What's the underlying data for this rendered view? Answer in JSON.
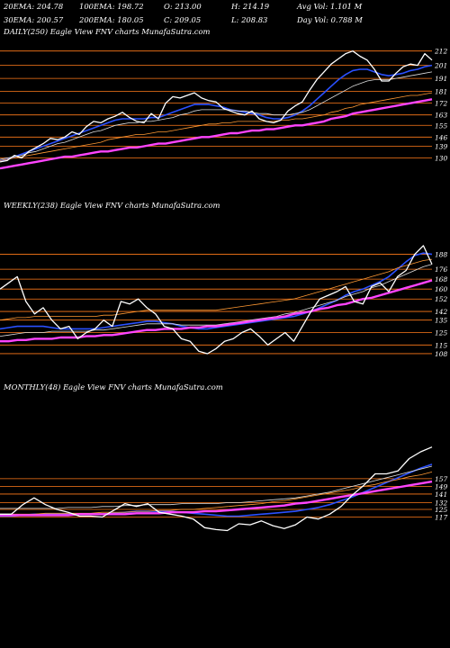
{
  "stats": {
    "row1": [
      {
        "label": "20EMA:",
        "value": "204.78"
      },
      {
        "label": "100EMA:",
        "value": "198.72"
      },
      {
        "label": "O:",
        "value": "213.00"
      },
      {
        "label": "H:",
        "value": "214.19"
      },
      {
        "label": "Avg Vol:",
        "value": "1.101 M"
      }
    ],
    "row2": [
      {
        "label": "30EMA:",
        "value": "200.57"
      },
      {
        "label": "200EMA:",
        "value": "180.05"
      },
      {
        "label": "C:",
        "value": "209.05"
      },
      {
        "label": "L:",
        "value": "208.83"
      },
      {
        "label": "Day Vol:",
        "value": "0.788 M"
      }
    ]
  },
  "colors": {
    "background": "#000000",
    "price": "#ffffff",
    "ema_blue": "#2a50ff",
    "ema_magenta": "#ff44ff",
    "ema_white": "#dddddd",
    "ema_orange": "#ff9933",
    "level_line": "#ff7a1a"
  },
  "chart_data": [
    {
      "type": "line",
      "title": "DAILY(250) Eagle  View  FNV charts MunafaSutra.com",
      "price_levels": [
        212,
        201,
        191,
        181,
        172,
        163,
        155,
        146,
        139,
        130
      ],
      "ylim": [
        120,
        218
      ],
      "series": [
        {
          "name": "",
          "role": "price",
          "values": [
            127,
            128,
            132,
            130,
            135,
            138,
            141,
            145,
            144,
            146,
            150,
            148,
            154,
            158,
            157,
            160,
            162,
            165,
            161,
            158,
            157,
            164,
            160,
            172,
            177,
            176,
            178,
            180,
            176,
            174,
            173,
            168,
            166,
            164,
            163,
            166,
            160,
            158,
            157,
            159,
            166,
            170,
            173,
            182,
            190,
            196,
            202,
            206,
            210,
            212,
            208,
            205,
            198,
            189,
            189,
            195,
            200,
            202,
            201,
            210,
            205
          ]
        },
        {
          "name": "",
          "role": "ema",
          "values": [
            128,
            129,
            131,
            133,
            135,
            137,
            139,
            141,
            143,
            145,
            147,
            149,
            151,
            153,
            155,
            157,
            159,
            160,
            160,
            160,
            160,
            161,
            161,
            163,
            165,
            167,
            169,
            171,
            171,
            171,
            170,
            169,
            167,
            166,
            165,
            164,
            163,
            161,
            160,
            160,
            161,
            163,
            166,
            170,
            175,
            180,
            185,
            190,
            194,
            197,
            198,
            198,
            196,
            194,
            193,
            194,
            195,
            197,
            198,
            200,
            201
          ]
        },
        {
          "name": "",
          "role": "ema",
          "values": [
            129,
            130,
            131,
            132,
            134,
            135,
            137,
            139,
            141,
            142,
            144,
            146,
            148,
            150,
            151,
            153,
            155,
            156,
            157,
            157,
            158,
            158,
            159,
            160,
            161,
            163,
            164,
            166,
            167,
            167,
            167,
            167,
            167,
            166,
            166,
            165,
            164,
            164,
            163,
            163,
            163,
            164,
            165,
            167,
            170,
            173,
            176,
            179,
            182,
            185,
            187,
            189,
            190,
            190,
            190,
            191,
            192,
            193,
            194,
            195,
            196
          ]
        },
        {
          "name": "",
          "role": "ema",
          "values": [
            128,
            129,
            130,
            131,
            132,
            133,
            134,
            135,
            136,
            137,
            138,
            139,
            140,
            141,
            142,
            144,
            145,
            146,
            147,
            148,
            148,
            149,
            150,
            150,
            151,
            152,
            153,
            154,
            155,
            156,
            156,
            157,
            157,
            158,
            158,
            158,
            158,
            158,
            158,
            159,
            159,
            160,
            160,
            161,
            162,
            163,
            165,
            166,
            168,
            169,
            171,
            172,
            173,
            174,
            175,
            176,
            177,
            178,
            178,
            179,
            180
          ]
        },
        {
          "name": "",
          "role": "ema",
          "values": [
            122,
            123,
            124,
            125,
            126,
            127,
            128,
            129,
            130,
            131,
            131,
            132,
            133,
            134,
            135,
            135,
            136,
            137,
            138,
            138,
            139,
            140,
            141,
            141,
            142,
            143,
            144,
            145,
            146,
            146,
            147,
            148,
            149,
            149,
            150,
            151,
            151,
            152,
            152,
            153,
            154,
            155,
            155,
            156,
            157,
            158,
            160,
            161,
            162,
            164,
            165,
            166,
            167,
            168,
            169,
            170,
            171,
            172,
            173,
            174,
            175
          ]
        }
      ]
    },
    {
      "type": "line",
      "title": "WEEKLY(238) Eagle  View  FNV charts MunafaSutra.com",
      "price_levels": [
        188,
        176,
        168,
        160,
        152,
        142,
        135,
        125,
        115,
        108
      ],
      "ylim": [
        100,
        200
      ],
      "series": [
        {
          "name": "",
          "role": "price",
          "values": [
            160,
            165,
            170,
            150,
            140,
            145,
            135,
            128,
            130,
            120,
            125,
            128,
            135,
            130,
            150,
            148,
            152,
            145,
            140,
            130,
            128,
            120,
            118,
            110,
            108,
            112,
            118,
            120,
            125,
            128,
            122,
            115,
            120,
            125,
            118,
            130,
            142,
            152,
            155,
            158,
            162,
            150,
            148,
            162,
            165,
            158,
            170,
            175,
            188,
            195,
            180
          ]
        },
        {
          "name": "",
          "role": "ema",
          "values": [
            128,
            129,
            130,
            130,
            130,
            130,
            129,
            128,
            128,
            128,
            128,
            128,
            129,
            130,
            131,
            132,
            133,
            134,
            134,
            133,
            132,
            130,
            129,
            128,
            128,
            129,
            130,
            131,
            132,
            133,
            134,
            135,
            136,
            137,
            138,
            140,
            142,
            145,
            148,
            151,
            155,
            158,
            160,
            163,
            166,
            170,
            176,
            182,
            187,
            189,
            188
          ]
        },
        {
          "name": "",
          "role": "ema",
          "values": [
            122,
            123,
            124,
            125,
            125,
            125,
            126,
            126,
            126,
            126,
            126,
            127,
            127,
            128,
            129,
            130,
            131,
            132,
            132,
            132,
            132,
            131,
            131,
            131,
            131,
            131,
            132,
            133,
            134,
            135,
            136,
            137,
            138,
            140,
            141,
            143,
            145,
            147,
            149,
            151,
            154,
            156,
            158,
            161,
            163,
            166,
            169,
            172,
            175,
            178,
            180
          ]
        },
        {
          "name": "",
          "role": "ema",
          "values": [
            135,
            136,
            137,
            137,
            138,
            138,
            138,
            138,
            138,
            138,
            138,
            138,
            139,
            139,
            140,
            141,
            142,
            143,
            143,
            143,
            143,
            143,
            143,
            143,
            143,
            143,
            144,
            145,
            146,
            147,
            148,
            149,
            150,
            151,
            152,
            154,
            156,
            158,
            160,
            162,
            164,
            166,
            168,
            170,
            172,
            174,
            177,
            179,
            181,
            183,
            184
          ]
        },
        {
          "name": "",
          "role": "ema",
          "values": [
            118,
            118,
            119,
            119,
            120,
            120,
            120,
            121,
            121,
            121,
            122,
            122,
            123,
            123,
            124,
            125,
            126,
            127,
            127,
            128,
            128,
            128,
            129,
            129,
            130,
            130,
            131,
            132,
            133,
            134,
            135,
            136,
            137,
            138,
            140,
            141,
            142,
            144,
            145,
            147,
            148,
            150,
            152,
            153,
            155,
            157,
            159,
            161,
            163,
            165,
            167
          ]
        }
      ]
    },
    {
      "type": "line",
      "title": "MONTHLY(48) Eagle  View  FNV charts MunafaSutra.com",
      "price_levels": [
        157,
        149,
        141,
        132,
        125,
        117
      ],
      "ylim": [
        95,
        200
      ],
      "series": [
        {
          "name": "",
          "role": "price",
          "values": [
            120,
            120,
            130,
            137,
            130,
            125,
            122,
            118,
            118,
            117,
            124,
            131,
            128,
            131,
            122,
            120,
            118,
            115,
            106,
            104,
            103,
            110,
            109,
            113,
            108,
            105,
            109,
            117,
            115,
            120,
            128,
            140,
            150,
            162,
            162,
            165,
            178,
            185,
            190
          ]
        },
        {
          "name": "",
          "role": "ema",
          "values": [
            118,
            118,
            119,
            120,
            120,
            120,
            120,
            120,
            120,
            120,
            121,
            122,
            123,
            123,
            123,
            123,
            122,
            121,
            120,
            119,
            118,
            118,
            119,
            120,
            121,
            122,
            123,
            125,
            127,
            130,
            134,
            138,
            143,
            148,
            153,
            158,
            163,
            168,
            172
          ]
        },
        {
          "name": "",
          "role": "ema",
          "values": [
            126,
            126,
            126,
            126,
            126,
            126,
            127,
            127,
            127,
            128,
            128,
            129,
            129,
            130,
            130,
            130,
            131,
            131,
            131,
            131,
            132,
            132,
            133,
            134,
            135,
            136,
            137,
            139,
            141,
            143,
            146,
            149,
            152,
            155,
            158,
            161,
            164,
            167,
            170
          ]
        },
        {
          "name": "",
          "role": "ema",
          "values": [
            120,
            120,
            120,
            120,
            121,
            121,
            121,
            121,
            121,
            122,
            122,
            122,
            123,
            123,
            124,
            124,
            125,
            125,
            126,
            127,
            128,
            129,
            130,
            131,
            133,
            134,
            136,
            138,
            140,
            142,
            144,
            146,
            149,
            151,
            154,
            156,
            159,
            161,
            164
          ]
        },
        {
          "name": "",
          "role": "ema",
          "values": [
            119,
            119,
            119,
            119,
            119,
            119,
            119,
            120,
            120,
            120,
            120,
            120,
            121,
            121,
            121,
            122,
            122,
            122,
            123,
            123,
            124,
            125,
            126,
            127,
            128,
            129,
            131,
            132,
            134,
            136,
            138,
            140,
            142,
            144,
            146,
            148,
            150,
            152,
            154
          ]
        }
      ]
    }
  ]
}
